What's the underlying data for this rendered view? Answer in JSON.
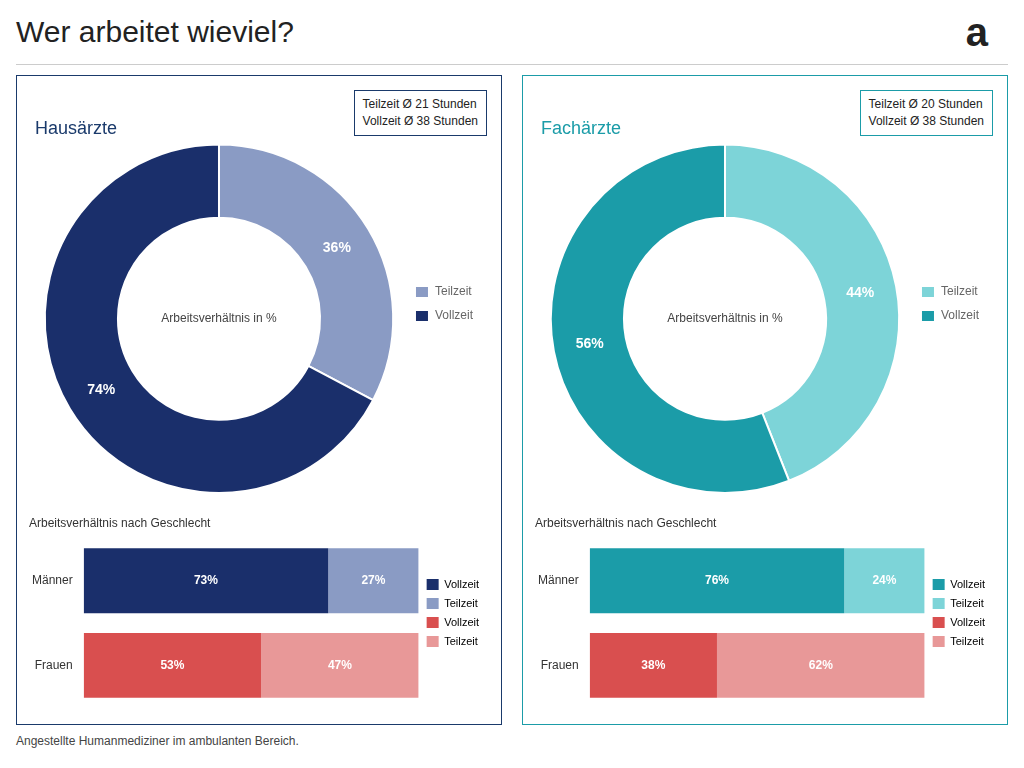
{
  "title": "Wer arbeitet wieviel?",
  "subtitle": "Angestellte Humanmediziner im ambulanten Bereich.",
  "annotations": [
    "a"
  ],
  "chart_data": [
    {
      "type": "doughnut",
      "title": "Hausärzte",
      "color": "#1a3a6b",
      "categories": [
        "Teilzeit",
        "Vollzeit"
      ],
      "values": [
        36,
        74
      ],
      "value_labels": [
        "36%",
        "74%"
      ],
      "colors": [
        "#8a9bc4",
        "#1a2f6b"
      ],
      "data_labels": true,
      "legend": "right",
      "annotations": [
        "Arbeitsverhältnis in %",
        "Teilzeit Ø 21 Stunden\nVollzeit Ø 38 Stunden"
      ]
    },
    {
      "type": "bar",
      "orientation": "horizontal",
      "stacked": true,
      "title": "Arbeitsverhältnis nach Geschlecht",
      "categories": [
        "Männer",
        "Frauen"
      ],
      "series": [
        {
          "name": "Vollzeit",
          "values": [
            73,
            53
          ],
          "value_labels": [
            "73%",
            "53%"
          ],
          "colors": [
            "#1a2f6b",
            "#d94f4f"
          ]
        },
        {
          "name": "Teilzeit",
          "values": [
            27,
            47
          ],
          "value_labels": [
            "27%",
            "47%"
          ],
          "colors": [
            "#8a9bc4",
            "#e89898"
          ]
        }
      ],
      "xlim": [
        0,
        100
      ],
      "data_labels": true,
      "tick_labels": "y",
      "grid": false,
      "legend": "right"
    },
    {
      "type": "doughnut",
      "title": "Fachärzte",
      "color": "#1b9ca8",
      "categories": [
        "Teilzeit",
        "Vollzeit"
      ],
      "values": [
        44,
        56
      ],
      "value_labels": [
        "44%",
        "56%"
      ],
      "colors": [
        "#7dd4d8",
        "#1b9ca8"
      ],
      "data_labels": true,
      "legend": "right",
      "annotations": [
        "Arbeitsverhältnis in %",
        "Teilzeit Ø 20 Stunden\nVollzeit Ø 38 Stunden"
      ]
    },
    {
      "type": "bar",
      "orientation": "horizontal",
      "stacked": true,
      "title": "Arbeitsverhältnis nach Geschlecht",
      "categories": [
        "Männer",
        "Frauen"
      ],
      "series": [
        {
          "name": "Vollzeit",
          "values": [
            76,
            38
          ],
          "value_labels": [
            "76%",
            "38%"
          ],
          "colors": [
            "#1b9ca8",
            "#d94f4f"
          ]
        },
        {
          "name": "Teilzeit",
          "values": [
            24,
            62
          ],
          "value_labels": [
            "24%",
            "62%"
          ],
          "colors": [
            "#7dd4d8",
            "#e89898"
          ]
        }
      ],
      "xlim": [
        0,
        100
      ],
      "data_labels": true,
      "tick_labels": "y",
      "grid": false,
      "legend": "right"
    }
  ]
}
